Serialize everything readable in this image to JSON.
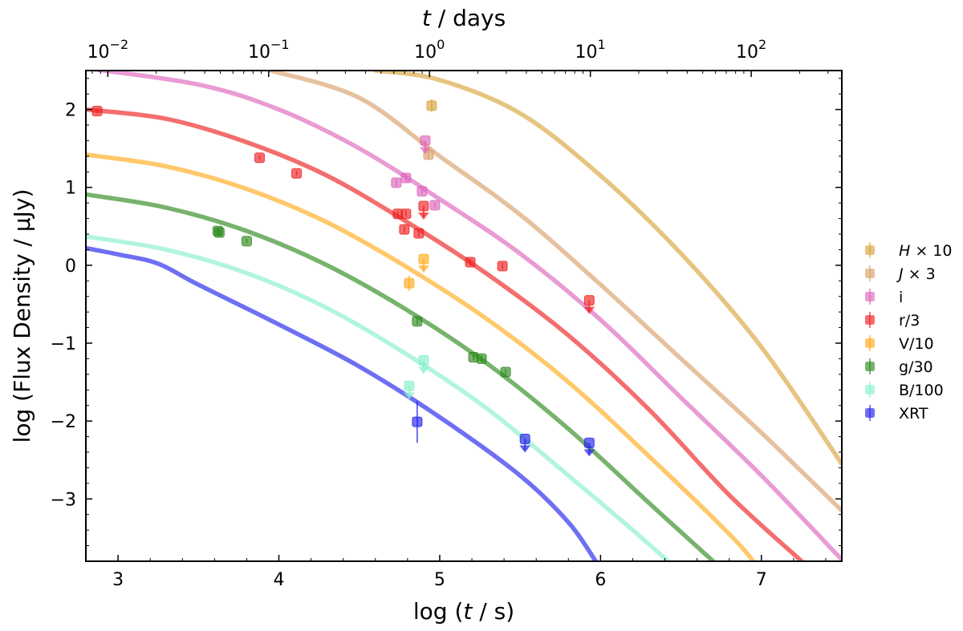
{
  "chart_data": {
    "type": "scatter",
    "title": "",
    "xlabel_bottom": {
      "pre": "log (",
      "var": "t",
      "post": " / s)"
    },
    "xlabel_top": {
      "var": "t",
      "post": " / days"
    },
    "ylabel": "log (Flux Density / μJy)",
    "xlim": [
      2.8,
      7.5
    ],
    "ylim": [
      -3.8,
      2.5
    ],
    "x_ticks": [
      3,
      4,
      5,
      6,
      7
    ],
    "x_tick_labels": [
      "3",
      "4",
      "5",
      "6",
      "7"
    ],
    "y_ticks": [
      2,
      1,
      0,
      -1,
      -2,
      -3
    ],
    "y_tick_labels": [
      "2",
      "1",
      "0",
      "−1",
      "−2",
      "−3"
    ],
    "top_ticks": [
      {
        "base": "10",
        "exp": "−2",
        "value_days": 0.01
      },
      {
        "base": "10",
        "exp": "−1",
        "value_days": 0.1
      },
      {
        "base": "10",
        "exp": "0",
        "value_days": 1
      },
      {
        "base": "10",
        "exp": "1",
        "value_days": 10
      },
      {
        "base": "10",
        "exp": "2",
        "value_days": 100
      }
    ],
    "grid": false,
    "legend_position": "right",
    "series": [
      {
        "key": "H",
        "legend": {
          "var": "H",
          "suffix": " × 10"
        },
        "color": "#d9a53b",
        "curve": [
          [
            4.6,
            2.5
          ],
          [
            5.0,
            2.38
          ],
          [
            5.5,
            1.95
          ],
          [
            6.0,
            1.15
          ],
          [
            6.5,
            0.15
          ],
          [
            7.0,
            -1.05
          ],
          [
            7.5,
            -2.55
          ]
        ],
        "points": [
          {
            "x": 4.95,
            "y": 2.05,
            "err": 0.08,
            "limit": false
          }
        ]
      },
      {
        "key": "J",
        "legend": {
          "var": "J",
          "suffix": " × 3"
        },
        "color": "#d8a06a",
        "curve": [
          [
            3.95,
            2.5
          ],
          [
            4.5,
            2.15
          ],
          [
            5.0,
            1.4
          ],
          [
            5.5,
            0.65
          ],
          [
            6.0,
            -0.25
          ],
          [
            6.5,
            -1.2
          ],
          [
            7.0,
            -2.15
          ],
          [
            7.5,
            -3.15
          ]
        ],
        "points": [
          {
            "x": 4.93,
            "y": 1.42,
            "err": 0.06,
            "limit": false
          }
        ]
      },
      {
        "key": "i",
        "legend": {
          "text": "i"
        },
        "color": "#dd66bb",
        "curve": [
          [
            2.8,
            2.53
          ],
          [
            3.5,
            2.32
          ],
          [
            4.0,
            2.0
          ],
          [
            4.5,
            1.5
          ],
          [
            5.0,
            0.85
          ],
          [
            5.5,
            0.15
          ],
          [
            6.0,
            -0.7
          ],
          [
            6.5,
            -1.7
          ],
          [
            7.0,
            -2.7
          ],
          [
            7.5,
            -3.78
          ]
        ],
        "points": [
          {
            "x": 4.73,
            "y": 1.06,
            "err": 0.05,
            "limit": false
          },
          {
            "x": 4.79,
            "y": 1.12,
            "err": 0.05,
            "limit": false
          },
          {
            "x": 4.89,
            "y": 0.95,
            "err": 0.04,
            "limit": false
          },
          {
            "x": 4.97,
            "y": 0.77,
            "err": 0.04,
            "limit": false
          },
          {
            "x": 4.91,
            "y": 1.6,
            "err": 0.0,
            "limit": true
          }
        ]
      },
      {
        "key": "r",
        "legend": {
          "text": "r/3"
        },
        "color": "#ee2020",
        "curve": [
          [
            2.8,
            2.0
          ],
          [
            3.3,
            1.88
          ],
          [
            3.8,
            1.58
          ],
          [
            4.3,
            1.15
          ],
          [
            4.8,
            0.55
          ],
          [
            5.3,
            -0.12
          ],
          [
            5.8,
            -0.9
          ],
          [
            6.3,
            -1.85
          ],
          [
            6.8,
            -2.95
          ],
          [
            7.25,
            -3.8
          ]
        ],
        "points": [
          {
            "x": 2.87,
            "y": 1.98,
            "err": 0.03,
            "limit": false
          },
          {
            "x": 3.88,
            "y": 1.38,
            "err": 0.03,
            "limit": false
          },
          {
            "x": 4.11,
            "y": 1.18,
            "err": 0.03,
            "limit": false
          },
          {
            "x": 4.74,
            "y": 0.66,
            "err": 0.04,
            "limit": false
          },
          {
            "x": 4.79,
            "y": 0.66,
            "err": 0.04,
            "limit": false
          },
          {
            "x": 4.78,
            "y": 0.46,
            "err": 0.04,
            "limit": false
          },
          {
            "x": 4.87,
            "y": 0.41,
            "err": 0.04,
            "limit": false
          },
          {
            "x": 5.19,
            "y": 0.04,
            "err": 0.04,
            "limit": false
          },
          {
            "x": 5.39,
            "y": -0.01,
            "err": 0.04,
            "limit": false
          },
          {
            "x": 4.9,
            "y": 0.76,
            "err": 0.0,
            "limit": true
          },
          {
            "x": 5.93,
            "y": -0.45,
            "err": 0.0,
            "limit": true
          }
        ]
      },
      {
        "key": "V",
        "legend": {
          "text": "V/10"
        },
        "color": "#ffaa1a",
        "curve": [
          [
            2.8,
            1.42
          ],
          [
            3.3,
            1.27
          ],
          [
            3.8,
            0.98
          ],
          [
            4.3,
            0.55
          ],
          [
            4.8,
            -0.03
          ],
          [
            5.3,
            -0.7
          ],
          [
            5.8,
            -1.5
          ],
          [
            6.3,
            -2.45
          ],
          [
            6.8,
            -3.45
          ],
          [
            6.95,
            -3.8
          ]
        ],
        "points": [
          {
            "x": 4.81,
            "y": -0.23,
            "err": 0.1,
            "limit": false
          },
          {
            "x": 4.9,
            "y": 0.08,
            "err": 0.0,
            "limit": true
          }
        ]
      },
      {
        "key": "g",
        "legend": {
          "text": "g/30"
        },
        "color": "#2e8b1f",
        "curve": [
          [
            2.8,
            0.91
          ],
          [
            3.3,
            0.74
          ],
          [
            3.8,
            0.44
          ],
          [
            4.3,
            0.0
          ],
          [
            4.8,
            -0.58
          ],
          [
            5.3,
            -1.27
          ],
          [
            5.8,
            -2.1
          ],
          [
            6.3,
            -3.05
          ],
          [
            6.7,
            -3.8
          ]
        ],
        "points": [
          {
            "x": 3.62,
            "y": 0.44,
            "err": 0.04,
            "limit": false
          },
          {
            "x": 3.63,
            "y": 0.42,
            "err": 0.04,
            "limit": false
          },
          {
            "x": 3.8,
            "y": 0.31,
            "err": 0.03,
            "limit": false
          },
          {
            "x": 4.86,
            "y": -0.72,
            "err": 0.04,
            "limit": false
          },
          {
            "x": 5.21,
            "y": -1.18,
            "err": 0.04,
            "limit": false
          },
          {
            "x": 5.26,
            "y": -1.2,
            "err": 0.04,
            "limit": false
          },
          {
            "x": 5.41,
            "y": -1.37,
            "err": 0.04,
            "limit": false
          }
        ]
      },
      {
        "key": "B",
        "legend": {
          "text": "B/100"
        },
        "color": "#88f0cc",
        "curve": [
          [
            2.8,
            0.37
          ],
          [
            3.3,
            0.2
          ],
          [
            3.8,
            -0.1
          ],
          [
            4.3,
            -0.55
          ],
          [
            4.8,
            -1.15
          ],
          [
            5.3,
            -1.85
          ],
          [
            5.8,
            -2.7
          ],
          [
            6.2,
            -3.4
          ],
          [
            6.42,
            -3.8
          ]
        ],
        "points": [
          {
            "x": 4.81,
            "y": -1.55,
            "err": 0.0,
            "limit": true
          },
          {
            "x": 4.9,
            "y": -1.22,
            "err": 0.0,
            "limit": true
          }
        ]
      },
      {
        "key": "XRT",
        "legend": {
          "text": "XRT"
        },
        "color": "#2222ee",
        "curve": [
          [
            2.8,
            0.22
          ],
          [
            3.0,
            0.14
          ],
          [
            3.25,
            0.02
          ],
          [
            3.5,
            -0.25
          ],
          [
            4.0,
            -0.76
          ],
          [
            4.5,
            -1.3
          ],
          [
            5.0,
            -1.95
          ],
          [
            5.5,
            -2.7
          ],
          [
            5.8,
            -3.3
          ],
          [
            5.97,
            -3.8
          ]
        ],
        "points": [
          {
            "x": 4.86,
            "y": -2.01,
            "err": 0.27,
            "limit": false
          },
          {
            "x": 5.53,
            "y": -2.23,
            "err": 0.0,
            "limit": true
          },
          {
            "x": 5.93,
            "y": -2.28,
            "err": 0.0,
            "limit": true
          }
        ]
      }
    ]
  }
}
